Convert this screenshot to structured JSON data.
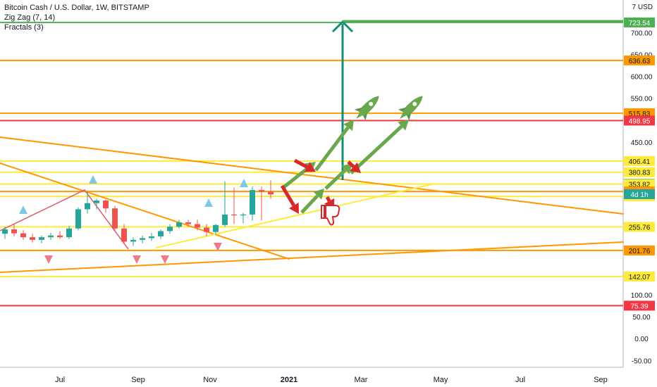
{
  "legend": {
    "symbol": "Bitcoin Cash / U.S. Dollar, 1W, BITSTAMP",
    "indicator1": "Zig Zag (7, 14)",
    "indicator2": "Fractals (3)"
  },
  "currency": "7 USD",
  "chart_data": {
    "type": "candlestick",
    "x_ticks": [
      "Jul",
      "Sep",
      "Nov",
      "2021",
      "Mar",
      "May",
      "Jul",
      "Sep"
    ],
    "y_ticks": [
      700.0,
      650.0,
      600.0,
      550.0,
      450.0,
      100.0,
      50.0,
      0.0,
      -50.0
    ],
    "y_range": [
      -60,
      760
    ],
    "colors": {
      "up": "#26a69a",
      "down": "#ef5350",
      "orange": "#ff9800",
      "yellow": "#ffeb3b",
      "red": "#f23645",
      "green": "#4caf50",
      "arrow_green": "#6aa84f",
      "teal": "#138d75"
    },
    "candles": [
      {
        "o": 240,
        "h": 256,
        "l": 228,
        "c": 250
      },
      {
        "o": 250,
        "h": 262,
        "l": 234,
        "c": 241
      },
      {
        "o": 241,
        "h": 248,
        "l": 226,
        "c": 232
      },
      {
        "o": 232,
        "h": 240,
        "l": 220,
        "c": 226
      },
      {
        "o": 226,
        "h": 236,
        "l": 218,
        "c": 232
      },
      {
        "o": 232,
        "h": 242,
        "l": 226,
        "c": 236
      },
      {
        "o": 236,
        "h": 246,
        "l": 228,
        "c": 232
      },
      {
        "o": 232,
        "h": 258,
        "l": 228,
        "c": 252
      },
      {
        "o": 252,
        "h": 300,
        "l": 248,
        "c": 296
      },
      {
        "o": 296,
        "h": 336,
        "l": 286,
        "c": 310
      },
      {
        "o": 310,
        "h": 320,
        "l": 296,
        "c": 316
      },
      {
        "o": 316,
        "h": 318,
        "l": 288,
        "c": 298
      },
      {
        "o": 298,
        "h": 304,
        "l": 246,
        "c": 252
      },
      {
        "o": 252,
        "h": 262,
        "l": 216,
        "c": 222
      },
      {
        "o": 222,
        "h": 232,
        "l": 212,
        "c": 226
      },
      {
        "o": 226,
        "h": 236,
        "l": 218,
        "c": 230
      },
      {
        "o": 230,
        "h": 242,
        "l": 224,
        "c": 234
      },
      {
        "o": 234,
        "h": 250,
        "l": 228,
        "c": 246
      },
      {
        "o": 246,
        "h": 262,
        "l": 240,
        "c": 256
      },
      {
        "o": 256,
        "h": 272,
        "l": 252,
        "c": 266
      },
      {
        "o": 266,
        "h": 272,
        "l": 256,
        "c": 262
      },
      {
        "o": 262,
        "h": 272,
        "l": 248,
        "c": 254
      },
      {
        "o": 254,
        "h": 262,
        "l": 234,
        "c": 244
      },
      {
        "o": 244,
        "h": 262,
        "l": 238,
        "c": 260
      },
      {
        "o": 260,
        "h": 360,
        "l": 256,
        "c": 284
      },
      {
        "o": 284,
        "h": 346,
        "l": 262,
        "c": 282
      },
      {
        "o": 282,
        "h": 288,
        "l": 264,
        "c": 284
      },
      {
        "o": 284,
        "h": 348,
        "l": 270,
        "c": 340
      },
      {
        "o": 340,
        "h": 348,
        "l": 270,
        "c": 336
      },
      {
        "o": 336,
        "h": 362,
        "l": 320,
        "c": 330
      }
    ],
    "price_lines": [
      {
        "value": 723.54,
        "label": "723.54",
        "color": "green"
      },
      {
        "value": 636.63,
        "label": "636.63",
        "color": "orange"
      },
      {
        "value": 515.83,
        "label": "515.83",
        "color": "orange"
      },
      {
        "value": 498.95,
        "label": "498.95",
        "color": "red"
      },
      {
        "value": 406.41,
        "label": "406.41",
        "color": "yellow"
      },
      {
        "value": 380.83,
        "label": "380.83",
        "color": "yellow"
      },
      {
        "value": 354.7,
        "label": "354.70",
        "color": "up"
      },
      {
        "value": 353.82,
        "label": "353.82",
        "color": "yellow"
      },
      {
        "value": 336.77,
        "label": "336.77",
        "color": "orange"
      },
      {
        "value": 325.4,
        "label": "325.40",
        "color": "yellow"
      },
      {
        "value": 255.76,
        "label": "255.76",
        "color": "yellow"
      },
      {
        "value": 201.76,
        "label": "201.76",
        "color": "orange"
      },
      {
        "value": 142.07,
        "label": "142.07",
        "color": "yellow"
      },
      {
        "value": 75.39,
        "label": "75.39",
        "color": "red"
      }
    ],
    "countdown_label": "4d 1h"
  }
}
